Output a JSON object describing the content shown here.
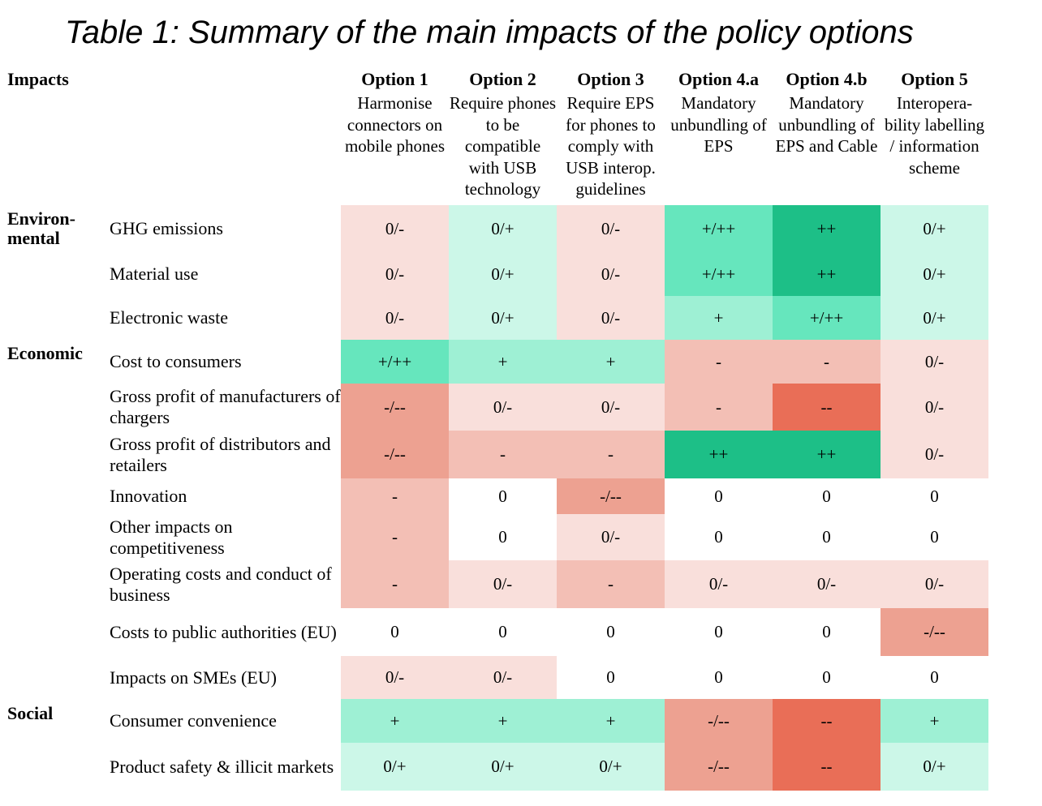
{
  "title": "Table 1: Summary of the main impacts of the policy options",
  "impacts_header": "Impacts",
  "options": [
    {
      "title": "Option 1",
      "desc": "Harmonise connectors on mobile phones"
    },
    {
      "title": "Option 2",
      "desc": "Require phones to be compatible with USB technology"
    },
    {
      "title": "Option 3",
      "desc": "Require EPS for phones to comply with USB interop. guidelines"
    },
    {
      "title": "Option 4.a",
      "desc": "Mandatory unbundling of EPS"
    },
    {
      "title": "Option 4.b",
      "desc": "Mandatory unbundling of EPS and Cable"
    },
    {
      "title": "Option 5",
      "desc": "Interopera-bility labelling / information scheme"
    }
  ],
  "categories": {
    "environmental": "Environ-mental",
    "economic": "Economic",
    "social": "Social"
  },
  "rows": [
    {
      "label": "GHG emissions",
      "values": [
        "0/-",
        "0/+",
        "0/-",
        "+/++",
        "++",
        "0/+"
      ]
    },
    {
      "label": "Material use",
      "values": [
        "0/-",
        "0/+",
        "0/-",
        "+/++",
        "++",
        "0/+"
      ]
    },
    {
      "label": "Electronic waste",
      "values": [
        "0/-",
        "0/+",
        "0/-",
        "+",
        "+/++",
        "0/+"
      ]
    },
    {
      "label": "Cost to consumers",
      "values": [
        "+/++",
        "+",
        "+",
        "-",
        "-",
        "0/-"
      ]
    },
    {
      "label": "Gross profit of manufacturers of chargers",
      "values": [
        "-/--",
        "0/-",
        "0/-",
        "-",
        "--",
        "0/-"
      ]
    },
    {
      "label": "Gross profit of distributors and retailers",
      "values": [
        "-/--",
        "-",
        "-",
        "++",
        "++",
        "0/-"
      ]
    },
    {
      "label": "Innovation",
      "values": [
        "-",
        "0",
        "-/--",
        "0",
        "0",
        "0"
      ]
    },
    {
      "label": "Other impacts on competitiveness",
      "values": [
        "-",
        "0",
        "0/-",
        "0",
        "0",
        "0"
      ]
    },
    {
      "label": "Operating costs and conduct of business",
      "values": [
        "-",
        "0/-",
        "-",
        "0/-",
        "0/-",
        "0/-"
      ]
    },
    {
      "label": "Costs to public authorities (EU)",
      "values": [
        "0",
        "0",
        "0",
        "0",
        "0",
        "-/--"
      ]
    },
    {
      "label": "Impacts on SMEs (EU)",
      "values": [
        "0/-",
        "0/-",
        "0",
        "0",
        "0",
        "0"
      ]
    },
    {
      "label": "Consumer convenience",
      "values": [
        "+",
        "+",
        "+",
        "-/--",
        "--",
        "+"
      ]
    },
    {
      "label": "Product safety & illicit markets",
      "values": [
        "0/+",
        "0/+",
        "0/+",
        "-/--",
        "--",
        "0/+"
      ]
    }
  ],
  "colors": {
    "strong_positive": "#1dbf87",
    "positive_plus": "#66e6bd",
    "positive": "#9ef0d4",
    "slight_positive": "#ccf7e8",
    "neutral": "#ffffff",
    "slight_negative": "#f9dfdb",
    "negative": "#f3bfb5",
    "negative_strong": "#eda191",
    "strong_negative": "#e96e57"
  }
}
